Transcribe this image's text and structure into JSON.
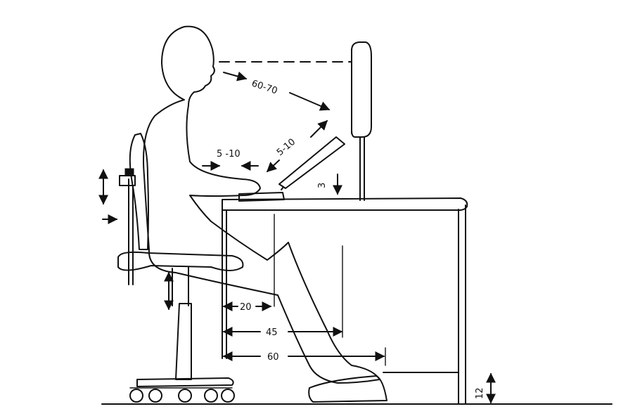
{
  "diagram": {
    "labels": {
      "eye_distance": "60-70",
      "keyboard_tilt": "5-10",
      "wrist_clearance": "5 -10",
      "keyboard_height": "3",
      "knee_depth": "20",
      "thigh_clearance": "45",
      "foot_reach": "60",
      "footrest_height": "12"
    }
  }
}
